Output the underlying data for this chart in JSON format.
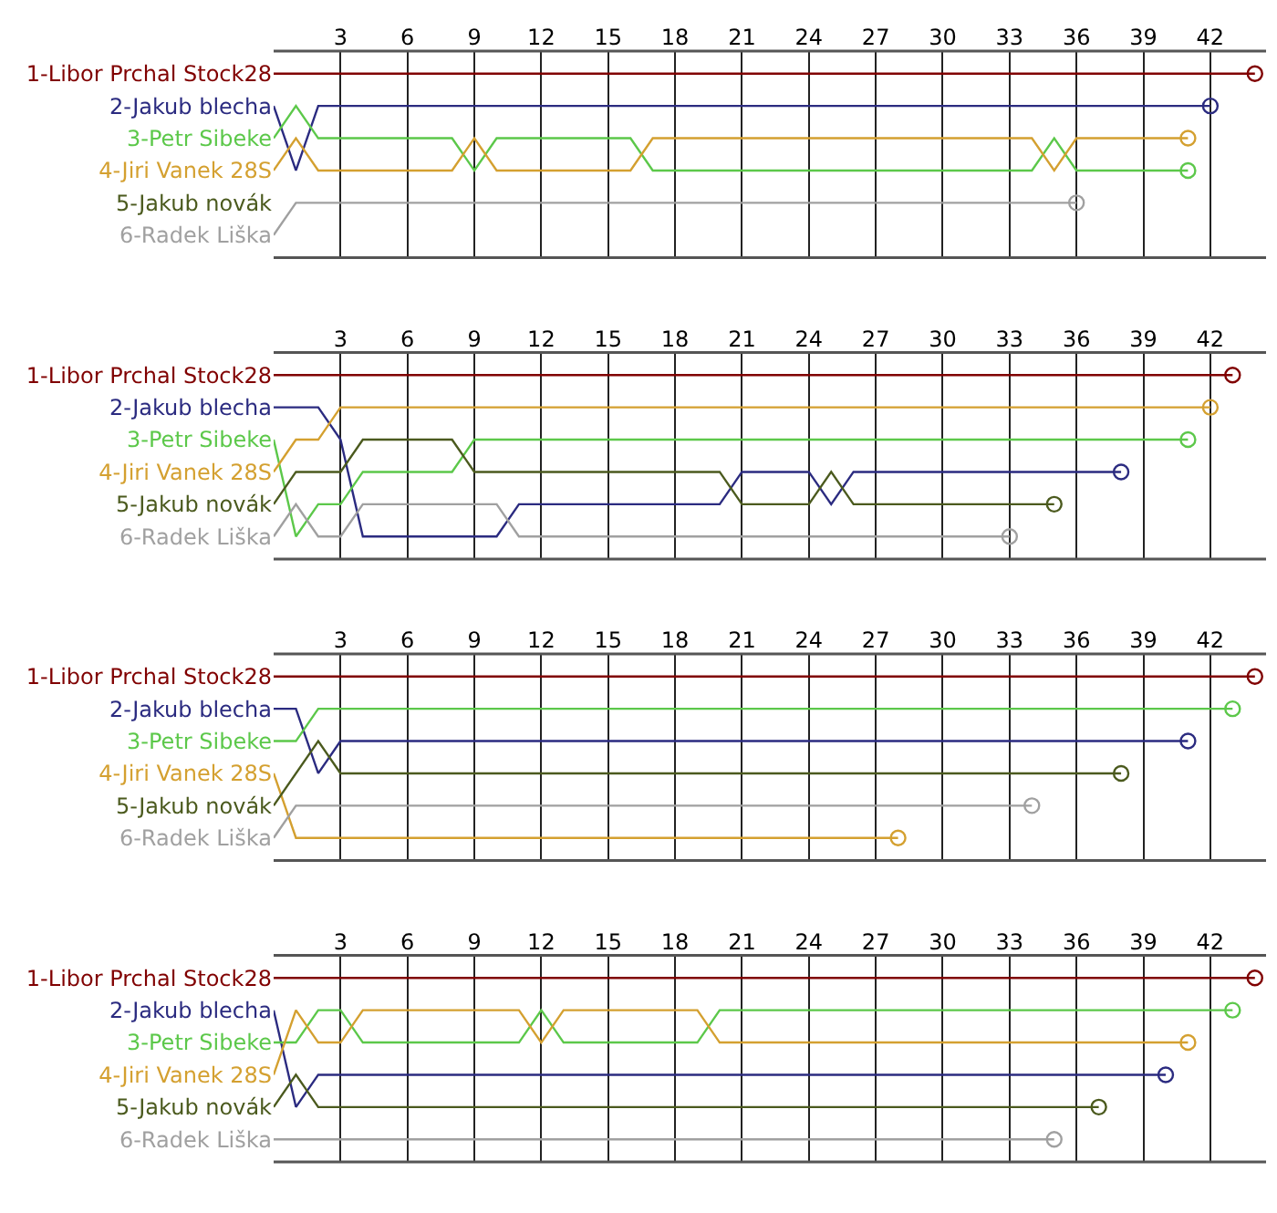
{
  "chart_data": [
    {
      "type": "line",
      "grid": "x",
      "xlim": [
        0,
        44.5
      ],
      "xticks": [
        3,
        6,
        9,
        12,
        15,
        18,
        21,
        24,
        27,
        30,
        33,
        36,
        39,
        42
      ],
      "ylim": [
        6.7,
        0.3
      ],
      "yticks": [
        {
          "value": 1,
          "label": "1-Libor Prchal Stock28"
        },
        {
          "value": 2,
          "label": "2-Jakub blecha"
        },
        {
          "value": 3,
          "label": "3-Petr Sibeke"
        },
        {
          "value": 4,
          "label": "4-Jiri Vanek 28S"
        },
        {
          "value": 5,
          "label": "5-Jakub novák"
        },
        {
          "value": 6,
          "label": "6-Radek Liška"
        }
      ],
      "series": [
        {
          "color": "#800000",
          "x": [
            0,
            44
          ],
          "values": [
            1,
            1
          ]
        },
        {
          "color": "#2b2b80",
          "x": [
            0,
            1,
            2,
            42
          ],
          "values": [
            2,
            4,
            2,
            2
          ]
        },
        {
          "color": "#5cc84a",
          "x": [
            0,
            1,
            2,
            8,
            9,
            10,
            16,
            17,
            34,
            35,
            36,
            41
          ],
          "values": [
            3,
            2,
            3,
            3,
            4,
            3,
            3,
            4,
            4,
            3,
            4,
            4
          ]
        },
        {
          "color": "#d4a030",
          "x": [
            0,
            1,
            2,
            8,
            9,
            10,
            16,
            17,
            34,
            35,
            36,
            41
          ],
          "values": [
            4,
            3,
            4,
            4,
            3,
            4,
            4,
            3,
            3,
            4,
            3,
            3
          ]
        },
        {
          "color": "#a0a0a0",
          "x": [
            0,
            1,
            36
          ],
          "values": [
            6,
            5,
            5
          ]
        },
        {
          "type": "scatter",
          "marker": "circle",
          "x": [
            44,
            42,
            41,
            41,
            36
          ],
          "values": [
            1,
            2,
            4,
            3,
            5
          ],
          "colors": [
            "#800000",
            "#2b2b80",
            "#5cc84a",
            "#d4a030",
            "#a0a0a0"
          ]
        }
      ]
    },
    {
      "type": "line",
      "grid": "x",
      "xlim": [
        0,
        44.5
      ],
      "xticks": [
        3,
        6,
        9,
        12,
        15,
        18,
        21,
        24,
        27,
        30,
        33,
        36,
        39,
        42
      ],
      "ylim": [
        6.7,
        0.3
      ],
      "yticks": [
        {
          "value": 1,
          "label": "1-Libor Prchal Stock28"
        },
        {
          "value": 2,
          "label": "2-Jakub blecha"
        },
        {
          "value": 3,
          "label": "3-Petr Sibeke"
        },
        {
          "value": 4,
          "label": "4-Jiri Vanek 28S"
        },
        {
          "value": 5,
          "label": "5-Jakub novák"
        },
        {
          "value": 6,
          "label": "6-Radek Liška"
        }
      ],
      "series": [
        {
          "color": "#800000",
          "x": [
            0,
            43
          ],
          "values": [
            1,
            1
          ]
        },
        {
          "color": "#2b2b80",
          "x": [
            0,
            2,
            3,
            4,
            10,
            11,
            20,
            21,
            24,
            25,
            26,
            38
          ],
          "values": [
            2,
            2,
            3,
            6,
            6,
            5,
            5,
            4,
            4,
            5,
            4,
            4
          ]
        },
        {
          "color": "#5cc84a",
          "x": [
            0,
            1,
            2,
            3,
            4,
            8,
            9,
            41
          ],
          "values": [
            3,
            6,
            5,
            5,
            4,
            4,
            3,
            3
          ]
        },
        {
          "color": "#d4a030",
          "x": [
            0,
            1,
            2,
            3,
            42
          ],
          "values": [
            4,
            3,
            3,
            2,
            2
          ]
        },
        {
          "color": "#4b5a1e",
          "x": [
            0,
            1,
            3,
            4,
            8,
            9,
            20,
            21,
            24,
            25,
            26,
            35
          ],
          "values": [
            5,
            4,
            4,
            3,
            3,
            4,
            4,
            5,
            5,
            4,
            5,
            5
          ]
        },
        {
          "color": "#a0a0a0",
          "x": [
            0,
            1,
            2,
            3,
            4,
            10,
            11,
            33
          ],
          "values": [
            6,
            5,
            6,
            6,
            5,
            5,
            6,
            6
          ]
        },
        {
          "type": "scatter",
          "marker": "circle",
          "x": [
            43,
            38,
            41,
            42,
            35,
            33
          ],
          "values": [
            1,
            4,
            3,
            2,
            5,
            6
          ],
          "colors": [
            "#800000",
            "#2b2b80",
            "#5cc84a",
            "#d4a030",
            "#4b5a1e",
            "#a0a0a0"
          ]
        }
      ]
    },
    {
      "type": "line",
      "grid": "x",
      "xlim": [
        0,
        44.5
      ],
      "xticks": [
        3,
        6,
        9,
        12,
        15,
        18,
        21,
        24,
        27,
        30,
        33,
        36,
        39,
        42
      ],
      "ylim": [
        6.7,
        0.3
      ],
      "yticks": [
        {
          "value": 1,
          "label": "1-Libor Prchal Stock28"
        },
        {
          "value": 2,
          "label": "2-Jakub blecha"
        },
        {
          "value": 3,
          "label": "3-Petr Sibeke"
        },
        {
          "value": 4,
          "label": "4-Jiri Vanek 28S"
        },
        {
          "value": 5,
          "label": "5-Jakub novák"
        },
        {
          "value": 6,
          "label": "6-Radek Liška"
        }
      ],
      "series": [
        {
          "color": "#800000",
          "x": [
            0,
            44
          ],
          "values": [
            1,
            1
          ]
        },
        {
          "color": "#2b2b80",
          "x": [
            0,
            1,
            2,
            3,
            41
          ],
          "values": [
            2,
            2,
            4,
            3,
            3
          ]
        },
        {
          "color": "#5cc84a",
          "x": [
            0,
            1,
            2,
            43
          ],
          "values": [
            3,
            3,
            2,
            2
          ]
        },
        {
          "color": "#d4a030",
          "x": [
            0,
            1,
            28
          ],
          "values": [
            4,
            6,
            6
          ]
        },
        {
          "color": "#4b5a1e",
          "x": [
            0,
            2,
            3,
            38
          ],
          "values": [
            5,
            3,
            4,
            4
          ]
        },
        {
          "color": "#a0a0a0",
          "x": [
            0,
            1,
            34
          ],
          "values": [
            6,
            5,
            5
          ]
        },
        {
          "type": "scatter",
          "marker": "circle",
          "x": [
            44,
            41,
            43,
            28,
            38,
            34
          ],
          "values": [
            1,
            3,
            2,
            6,
            4,
            5
          ],
          "colors": [
            "#800000",
            "#2b2b80",
            "#5cc84a",
            "#d4a030",
            "#4b5a1e",
            "#a0a0a0"
          ]
        }
      ]
    },
    {
      "type": "line",
      "grid": "x",
      "xlim": [
        0,
        44.5
      ],
      "xticks": [
        3,
        6,
        9,
        12,
        15,
        18,
        21,
        24,
        27,
        30,
        33,
        36,
        39,
        42
      ],
      "ylim": [
        6.7,
        0.3
      ],
      "yticks": [
        {
          "value": 1,
          "label": "1-Libor Prchal Stock28"
        },
        {
          "value": 2,
          "label": "2-Jakub blecha"
        },
        {
          "value": 3,
          "label": "3-Petr Sibeke"
        },
        {
          "value": 4,
          "label": "4-Jiri Vanek 28S"
        },
        {
          "value": 5,
          "label": "5-Jakub novák"
        },
        {
          "value": 6,
          "label": "6-Radek Liška"
        }
      ],
      "series": [
        {
          "color": "#800000",
          "x": [
            0,
            44
          ],
          "values": [
            1,
            1
          ]
        },
        {
          "color": "#2b2b80",
          "x": [
            0,
            1,
            2,
            40
          ],
          "values": [
            2,
            5,
            4,
            4
          ]
        },
        {
          "color": "#5cc84a",
          "x": [
            0,
            1,
            2,
            3,
            4,
            11,
            12,
            13,
            19,
            20,
            43
          ],
          "values": [
            3,
            3,
            2,
            2,
            3,
            3,
            2,
            3,
            3,
            2,
            2
          ]
        },
        {
          "color": "#d4a030",
          "x": [
            0,
            1,
            2,
            3,
            4,
            11,
            12,
            13,
            19,
            20,
            41
          ],
          "values": [
            4,
            2,
            3,
            3,
            2,
            2,
            3,
            2,
            2,
            3,
            3
          ]
        },
        {
          "color": "#4b5a1e",
          "x": [
            0,
            1,
            2,
            37
          ],
          "values": [
            5,
            4,
            5,
            5
          ]
        },
        {
          "color": "#a0a0a0",
          "x": [
            0,
            35
          ],
          "values": [
            6,
            6
          ]
        },
        {
          "type": "scatter",
          "marker": "circle",
          "x": [
            44,
            40,
            43,
            41,
            37,
            35
          ],
          "values": [
            1,
            4,
            2,
            3,
            5,
            6
          ],
          "colors": [
            "#800000",
            "#2b2b80",
            "#5cc84a",
            "#d4a030",
            "#4b5a1e",
            "#a0a0a0"
          ]
        }
      ]
    }
  ]
}
